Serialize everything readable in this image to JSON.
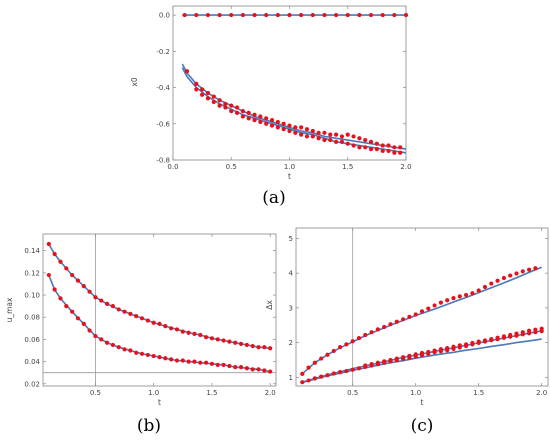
{
  "colors": {
    "fit": "#4a79b9",
    "points": "#e8101a",
    "frame": "#888888",
    "ref": "#9a9a9a"
  },
  "chart_data": [
    {
      "id": "a",
      "type": "scatter",
      "caption": "(a)",
      "xlabel": "t",
      "ylabel": "x0",
      "xlim": [
        0,
        2.0
      ],
      "ylim": [
        -0.8,
        0.05
      ],
      "xticks": [
        "0.0",
        "0.5",
        "1.0",
        "1.5",
        "2.0"
      ],
      "yticks": [
        "0.0",
        "-0.2",
        "-0.4",
        "-0.6",
        "-0.8"
      ],
      "ref_lines": [],
      "series": [
        {
          "kind": "fit",
          "x": [
            0.08,
            0.12,
            0.2,
            0.3,
            0.4,
            0.5,
            0.6,
            0.7,
            0.8,
            0.9,
            1.0,
            1.1,
            1.2,
            1.3,
            1.4,
            1.5,
            1.6,
            1.7,
            1.8,
            1.9,
            2.0
          ],
          "y": [
            0,
            0,
            0,
            0,
            0,
            0,
            0,
            0,
            0,
            0,
            0,
            0,
            0,
            0,
            0,
            0,
            0,
            0,
            0,
            0,
            0
          ]
        },
        {
          "kind": "points",
          "x": [
            0.1,
            0.2,
            0.3,
            0.4,
            0.5,
            0.6,
            0.7,
            0.8,
            0.9,
            1.0,
            1.1,
            1.2,
            1.3,
            1.4,
            1.5,
            1.6,
            1.7,
            1.8,
            1.9,
            2.0
          ],
          "y": [
            0,
            0,
            0,
            0,
            0,
            0,
            0,
            0,
            0,
            0,
            0,
            0,
            0,
            0,
            0,
            0,
            0,
            0,
            0,
            0
          ]
        },
        {
          "kind": "fit",
          "x": [
            0.08,
            0.12,
            0.2,
            0.3,
            0.4,
            0.5,
            0.6,
            0.7,
            0.8,
            0.9,
            1.0,
            1.1,
            1.2,
            1.3,
            1.4,
            1.5,
            1.6,
            1.7,
            1.8,
            1.9,
            2.0
          ],
          "y": [
            -0.27,
            -0.32,
            -0.38,
            -0.43,
            -0.47,
            -0.5,
            -0.53,
            -0.56,
            -0.58,
            -0.6,
            -0.62,
            -0.64,
            -0.65,
            -0.67,
            -0.68,
            -0.69,
            -0.7,
            -0.71,
            -0.72,
            -0.73,
            -0.74
          ]
        },
        {
          "kind": "points",
          "x": [
            0.12,
            0.2,
            0.25,
            0.3,
            0.35,
            0.4,
            0.45,
            0.5,
            0.55,
            0.6,
            0.65,
            0.7,
            0.75,
            0.8,
            0.85,
            0.9,
            0.95,
            1.0,
            1.05,
            1.1,
            1.15,
            1.2,
            1.25,
            1.3,
            1.35,
            1.4,
            1.45,
            1.5,
            1.55,
            1.6,
            1.65,
            1.7,
            1.75,
            1.8,
            1.85,
            1.9,
            1.95
          ],
          "y": [
            -0.31,
            -0.38,
            -0.41,
            -0.43,
            -0.45,
            -0.47,
            -0.49,
            -0.5,
            -0.51,
            -0.53,
            -0.54,
            -0.55,
            -0.56,
            -0.57,
            -0.58,
            -0.59,
            -0.6,
            -0.61,
            -0.62,
            -0.62,
            -0.63,
            -0.64,
            -0.65,
            -0.65,
            -0.66,
            -0.66,
            -0.67,
            -0.66,
            -0.67,
            -0.68,
            -0.69,
            -0.7,
            -0.71,
            -0.72,
            -0.72,
            -0.73,
            -0.73
          ]
        },
        {
          "kind": "fit",
          "x": [
            0.08,
            0.12,
            0.2,
            0.3,
            0.4,
            0.5,
            0.6,
            0.7,
            0.8,
            0.9,
            1.0,
            1.1,
            1.2,
            1.3,
            1.4,
            1.5,
            1.6,
            1.7,
            1.8,
            1.9,
            2.0
          ],
          "y": [
            -0.29,
            -0.34,
            -0.4,
            -0.45,
            -0.49,
            -0.52,
            -0.55,
            -0.57,
            -0.59,
            -0.61,
            -0.63,
            -0.65,
            -0.66,
            -0.68,
            -0.7,
            -0.71,
            -0.72,
            -0.73,
            -0.74,
            -0.75,
            -0.76
          ]
        },
        {
          "kind": "points",
          "x": [
            0.2,
            0.25,
            0.3,
            0.35,
            0.4,
            0.45,
            0.5,
            0.55,
            0.6,
            0.65,
            0.7,
            0.75,
            0.8,
            0.85,
            0.9,
            0.95,
            1.0,
            1.05,
            1.1,
            1.15,
            1.2,
            1.25,
            1.3,
            1.35,
            1.4,
            1.45,
            1.5,
            1.55,
            1.6,
            1.65,
            1.7,
            1.75,
            1.8,
            1.85,
            1.9,
            1.95
          ],
          "y": [
            -0.41,
            -0.44,
            -0.46,
            -0.48,
            -0.5,
            -0.51,
            -0.53,
            -0.54,
            -0.56,
            -0.57,
            -0.58,
            -0.59,
            -0.6,
            -0.61,
            -0.62,
            -0.63,
            -0.64,
            -0.65,
            -0.66,
            -0.67,
            -0.67,
            -0.68,
            -0.69,
            -0.69,
            -0.7,
            -0.7,
            -0.71,
            -0.72,
            -0.73,
            -0.73,
            -0.74,
            -0.74,
            -0.75,
            -0.75,
            -0.76,
            -0.76
          ]
        }
      ]
    },
    {
      "id": "b",
      "type": "scatter",
      "caption": "(b)",
      "xlabel": "t",
      "ylabel": "u_max",
      "xlim": [
        0.05,
        2.05
      ],
      "ylim": [
        0.018,
        0.155
      ],
      "xticks": [
        "0.5",
        "1.0",
        "1.5",
        "2.0"
      ],
      "yticks": [
        "0.02",
        "0.04",
        "0.06",
        "0.08",
        "0.10",
        "0.12",
        "0.14"
      ],
      "ref_lines": [
        {
          "axis": "x",
          "value": 0.5
        },
        {
          "axis": "y",
          "value": 0.03
        }
      ],
      "series": [
        {
          "kind": "fit",
          "x": [
            0.1,
            0.15,
            0.2,
            0.3,
            0.4,
            0.5,
            0.6,
            0.7,
            0.8,
            0.9,
            1.0,
            1.1,
            1.2,
            1.3,
            1.4,
            1.5,
            1.6,
            1.7,
            1.8,
            1.9,
            2.0
          ],
          "y": [
            0.146,
            0.137,
            0.13,
            0.118,
            0.108,
            0.098,
            0.092,
            0.087,
            0.083,
            0.079,
            0.075,
            0.072,
            0.069,
            0.066,
            0.064,
            0.061,
            0.059,
            0.057,
            0.055,
            0.053,
            0.052
          ]
        },
        {
          "kind": "points",
          "x": [
            0.1,
            0.15,
            0.2,
            0.25,
            0.3,
            0.35,
            0.4,
            0.45,
            0.5,
            0.55,
            0.6,
            0.65,
            0.7,
            0.75,
            0.8,
            0.85,
            0.9,
            0.95,
            1.0,
            1.05,
            1.1,
            1.15,
            1.2,
            1.25,
            1.3,
            1.35,
            1.4,
            1.45,
            1.5,
            1.55,
            1.6,
            1.65,
            1.7,
            1.75,
            1.8,
            1.85,
            1.9,
            1.95,
            2.0
          ],
          "y": [
            0.146,
            0.137,
            0.13,
            0.124,
            0.118,
            0.113,
            0.108,
            0.103,
            0.098,
            0.095,
            0.092,
            0.09,
            0.087,
            0.085,
            0.083,
            0.081,
            0.079,
            0.077,
            0.075,
            0.074,
            0.072,
            0.07,
            0.069,
            0.067,
            0.066,
            0.065,
            0.064,
            0.062,
            0.061,
            0.06,
            0.059,
            0.058,
            0.057,
            0.056,
            0.055,
            0.054,
            0.053,
            0.053,
            0.052
          ]
        },
        {
          "kind": "fit",
          "x": [
            0.1,
            0.15,
            0.2,
            0.3,
            0.4,
            0.5,
            0.6,
            0.7,
            0.8,
            0.9,
            1.0,
            1.1,
            1.2,
            1.3,
            1.4,
            1.5,
            1.6,
            1.7,
            1.8,
            1.9,
            2.0
          ],
          "y": [
            0.118,
            0.105,
            0.097,
            0.085,
            0.074,
            0.063,
            0.057,
            0.053,
            0.05,
            0.047,
            0.045,
            0.043,
            0.041,
            0.04,
            0.039,
            0.038,
            0.037,
            0.035,
            0.034,
            0.033,
            0.031
          ]
        },
        {
          "kind": "points",
          "x": [
            0.1,
            0.15,
            0.2,
            0.25,
            0.3,
            0.35,
            0.4,
            0.45,
            0.5,
            0.55,
            0.6,
            0.65,
            0.7,
            0.75,
            0.8,
            0.85,
            0.9,
            0.95,
            1.0,
            1.05,
            1.1,
            1.15,
            1.2,
            1.25,
            1.3,
            1.35,
            1.4,
            1.45,
            1.5,
            1.55,
            1.6,
            1.65,
            1.7,
            1.75,
            1.8,
            1.85,
            1.9,
            1.95,
            2.0
          ],
          "y": [
            0.118,
            0.105,
            0.097,
            0.09,
            0.085,
            0.079,
            0.074,
            0.068,
            0.063,
            0.06,
            0.057,
            0.055,
            0.053,
            0.051,
            0.05,
            0.048,
            0.047,
            0.046,
            0.045,
            0.044,
            0.043,
            0.042,
            0.041,
            0.041,
            0.04,
            0.04,
            0.039,
            0.039,
            0.038,
            0.037,
            0.037,
            0.036,
            0.035,
            0.035,
            0.034,
            0.033,
            0.033,
            0.032,
            0.031
          ]
        }
      ]
    },
    {
      "id": "c",
      "type": "scatter",
      "caption": "(c)",
      "xlabel": "t",
      "ylabel": "Δx",
      "xlim": [
        0.05,
        2.05
      ],
      "ylim": [
        0.75,
        5.3
      ],
      "xticks": [
        "0.5",
        "1.0",
        "1.5",
        "2.0"
      ],
      "yticks": [
        "1",
        "2",
        "3",
        "4",
        "5"
      ],
      "ref_lines": [
        {
          "axis": "x",
          "value": 0.5
        }
      ],
      "series": [
        {
          "kind": "fit",
          "x": [
            0.1,
            0.2,
            0.3,
            0.4,
            0.5,
            0.6,
            0.7,
            0.8,
            0.9,
            1.0,
            1.1,
            1.2,
            1.3,
            1.4,
            1.5,
            1.6,
            1.7,
            1.8,
            1.9,
            2.0
          ],
          "y": [
            1.1,
            1.42,
            1.65,
            1.85,
            2.02,
            2.2,
            2.35,
            2.5,
            2.64,
            2.78,
            2.9,
            3.03,
            3.17,
            3.3,
            3.44,
            3.58,
            3.72,
            3.87,
            4.02,
            4.17
          ]
        },
        {
          "kind": "points",
          "x": [
            0.1,
            0.15,
            0.2,
            0.25,
            0.3,
            0.35,
            0.4,
            0.45,
            0.5,
            0.55,
            0.6,
            0.65,
            0.7,
            0.75,
            0.8,
            0.85,
            0.9,
            0.95,
            1.0,
            1.05,
            1.1,
            1.15,
            1.2,
            1.25,
            1.3,
            1.35,
            1.4,
            1.45,
            1.5,
            1.55,
            1.6,
            1.65,
            1.7,
            1.75,
            1.8,
            1.85,
            1.9,
            1.95
          ],
          "y": [
            1.1,
            1.28,
            1.42,
            1.54,
            1.65,
            1.76,
            1.87,
            1.95,
            2.04,
            2.13,
            2.22,
            2.3,
            2.38,
            2.45,
            2.53,
            2.6,
            2.67,
            2.74,
            2.81,
            2.9,
            2.98,
            3.07,
            3.15,
            3.22,
            3.28,
            3.33,
            3.37,
            3.42,
            3.5,
            3.6,
            3.7,
            3.78,
            3.86,
            3.93,
            3.99,
            4.05,
            4.1,
            4.14
          ]
        },
        {
          "kind": "fit",
          "x": [
            0.1,
            0.2,
            0.3,
            0.4,
            0.5,
            0.6,
            0.7,
            0.8,
            0.9,
            1.0,
            1.1,
            1.2,
            1.3,
            1.4,
            1.5,
            1.6,
            1.7,
            1.8,
            1.9,
            2.0
          ],
          "y": [
            0.85,
            0.95,
            1.04,
            1.12,
            1.2,
            1.27,
            1.35,
            1.42,
            1.48,
            1.55,
            1.61,
            1.67,
            1.72,
            1.78,
            1.83,
            1.89,
            1.94,
            2.0,
            2.05,
            2.1
          ]
        },
        {
          "kind": "points",
          "x": [
            0.1,
            0.15,
            0.2,
            0.25,
            0.3,
            0.35,
            0.4,
            0.45,
            0.5,
            0.55,
            0.6,
            0.65,
            0.7,
            0.75,
            0.8,
            0.85,
            0.9,
            0.95,
            1.0,
            1.05,
            1.1,
            1.15,
            1.2,
            1.25,
            1.3,
            1.35,
            1.4,
            1.45,
            1.5,
            1.55,
            1.6,
            1.65,
            1.7,
            1.75,
            1.8,
            1.85,
            1.9,
            1.95,
            2.0
          ],
          "y": [
            0.86,
            0.91,
            0.97,
            1.02,
            1.06,
            1.11,
            1.15,
            1.18,
            1.22,
            1.26,
            1.3,
            1.34,
            1.38,
            1.42,
            1.46,
            1.49,
            1.53,
            1.56,
            1.6,
            1.64,
            1.68,
            1.72,
            1.75,
            1.78,
            1.82,
            1.86,
            1.9,
            1.95,
            1.99,
            2.03,
            2.07,
            2.1,
            2.14,
            2.17,
            2.2,
            2.24,
            2.27,
            2.3,
            2.33
          ]
        },
        {
          "kind": "fit",
          "x": [
            0.1,
            0.2,
            0.3,
            0.4,
            0.5,
            0.6,
            0.7,
            0.8,
            0.9,
            1.0,
            1.1,
            1.2,
            1.3,
            1.4,
            1.5,
            1.6,
            1.7,
            1.8,
            1.9,
            2.0
          ],
          "y": [
            0.86,
            0.97,
            1.07,
            1.16,
            1.25,
            1.33,
            1.41,
            1.49,
            1.57,
            1.64,
            1.71,
            1.78,
            1.85,
            1.92,
            1.99,
            2.06,
            2.13,
            2.2,
            2.27,
            2.34
          ]
        },
        {
          "kind": "points",
          "x": [
            0.6,
            0.65,
            0.7,
            0.75,
            0.8,
            0.85,
            0.9,
            0.95,
            1.0,
            1.05,
            1.1,
            1.15,
            1.2,
            1.25,
            1.3,
            1.35,
            1.4,
            1.45,
            1.5,
            1.55,
            1.6,
            1.65,
            1.7,
            1.75,
            1.8,
            1.85,
            1.9,
            1.95,
            2.0
          ],
          "y": [
            1.34,
            1.38,
            1.42,
            1.46,
            1.5,
            1.54,
            1.58,
            1.62,
            1.66,
            1.7,
            1.73,
            1.77,
            1.81,
            1.84,
            1.88,
            1.92,
            1.95,
            1.99,
            2.03,
            2.06,
            2.1,
            2.14,
            2.18,
            2.22,
            2.26,
            2.3,
            2.34,
            2.37,
            2.4
          ]
        }
      ]
    }
  ]
}
